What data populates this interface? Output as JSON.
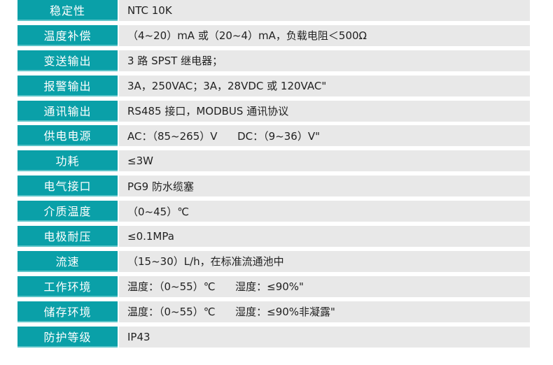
{
  "colors": {
    "label_bg": "#0aa0a8",
    "value_bg": "#e8e8e8"
  },
  "specs": [
    {
      "label": "稳定性",
      "value": "NTC 10K"
    },
    {
      "label": "温度补偿",
      "value": "（4~20）mA 或（20~4）mA，负载电阻＜500Ω"
    },
    {
      "label": "变送输出",
      "value": "3 路 SPST 继电器；"
    },
    {
      "label": "报警输出",
      "value": "3A，250VAC；3A，28VDC 或 120VAC\""
    },
    {
      "label": "通讯输出",
      "value": "RS485 接口，MODBUS 通讯协议"
    },
    {
      "label": "供电电源",
      "value": "AC：（85~265）V      DC：（9~36）V\""
    },
    {
      "label": "功耗",
      "value": "≤3W"
    },
    {
      "label": "电气接口",
      "value": "PG9 防水缆塞"
    },
    {
      "label": "介质温度",
      "value": "（0~45）℃"
    },
    {
      "label": "电极耐压",
      "value": "≤0.1MPa"
    },
    {
      "label": "流速",
      "value": "（15~30）L/h，在标准流通池中"
    },
    {
      "label": "工作环境",
      "value": "温度：（0~55）℃      湿度：≤90%\""
    },
    {
      "label": "储存环境",
      "value": "温度：（0~55）℃      湿度：≤90%非凝露\""
    },
    {
      "label": "防护等级",
      "value": "IP43"
    }
  ]
}
